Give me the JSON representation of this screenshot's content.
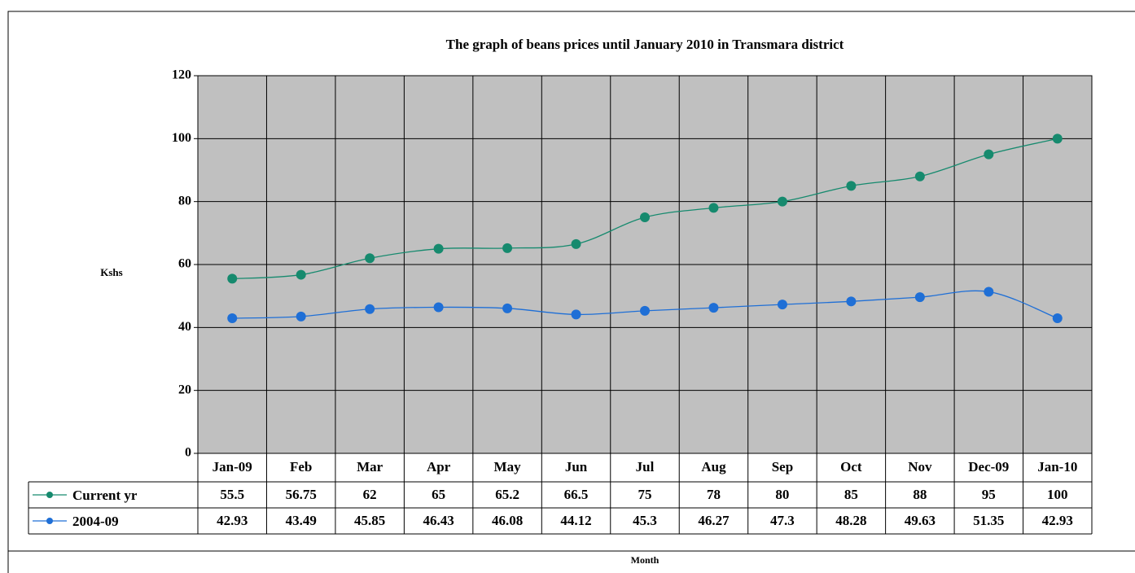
{
  "chart_data": {
    "type": "line",
    "title": "The graph of beans prices until January 2010 in Transmara  district",
    "ylabel": "Kshs",
    "xlabel": "Month",
    "categories": [
      "Jan-09",
      "Feb",
      "Mar",
      "Apr",
      "May",
      "Jun",
      "Jul",
      "Aug",
      "Sep",
      "Oct",
      "Nov",
      "Dec-09",
      "Jan-10"
    ],
    "series": [
      {
        "name": "Current yr",
        "color": "#168a6e",
        "values": [
          55.5,
          56.75,
          62,
          65,
          65.2,
          66.5,
          75,
          78,
          80,
          85,
          88,
          95,
          100
        ]
      },
      {
        "name": "2004-09",
        "color": "#1f6fd6",
        "values": [
          42.93,
          43.49,
          45.85,
          46.43,
          46.08,
          44.12,
          45.3,
          46.27,
          47.3,
          48.28,
          49.63,
          51.35,
          42.93
        ]
      }
    ],
    "ylim": [
      0,
      120
    ],
    "yticks": [
      0,
      20,
      40,
      60,
      80,
      100,
      120
    ],
    "grid": true
  }
}
